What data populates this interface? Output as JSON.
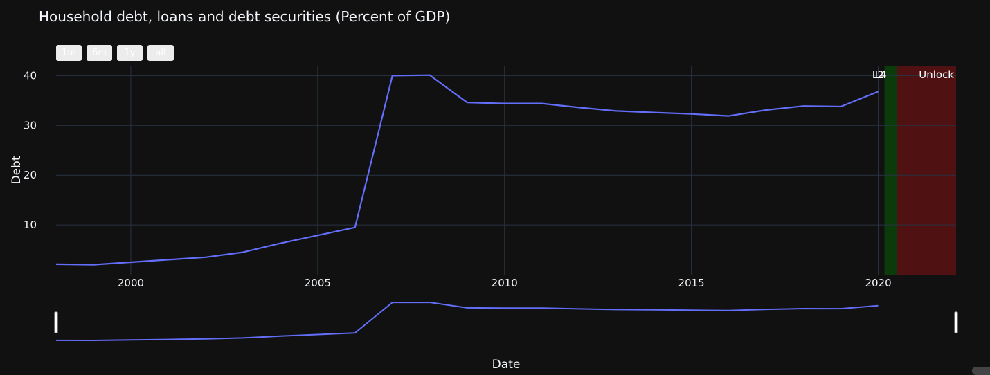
{
  "title": "Household debt, loans and debt securities (Percent of GDP)",
  "range_buttons": [
    "1m",
    "6m",
    "1y",
    "all"
  ],
  "colors": {
    "background": "#111111",
    "grid": "#283442",
    "line": "#636efa",
    "text": "#f2f5fa",
    "green_band": "#0b3a0b",
    "red_band": "#4f1111"
  },
  "annotations": {
    "vertical_marker_label": "L4",
    "vertical_marker_label_overlap": "L2",
    "unlock": "Unlock"
  },
  "chart_data": {
    "type": "line",
    "title": "Household debt, loans and debt securities (Percent of GDP)",
    "xlabel": "Date",
    "ylabel": "Debt",
    "x": [
      "1998",
      "1999",
      "2000",
      "2001",
      "2002",
      "2003",
      "2004",
      "2005",
      "2006",
      "2007",
      "2008",
      "2009",
      "2010",
      "2011",
      "2012",
      "2013",
      "2014",
      "2015",
      "2016",
      "2017",
      "2018",
      "2019",
      "2020"
    ],
    "values": [
      2.1,
      2.0,
      2.5,
      3.0,
      3.5,
      4.5,
      6.3,
      7.9,
      9.5,
      40.0,
      40.1,
      34.6,
      34.4,
      34.4,
      33.6,
      32.9,
      32.6,
      32.3,
      31.9,
      33.1,
      33.9,
      33.8,
      36.8
    ],
    "xticks": [
      "2000",
      "2005",
      "2010",
      "2015",
      "2020"
    ],
    "yticks": [
      "10",
      "20",
      "30",
      "40"
    ],
    "xlim": [
      "1998",
      "2022-02"
    ],
    "ylim": [
      0,
      42
    ],
    "grid": true,
    "shaded_regions": [
      {
        "label": "L4",
        "color": "green",
        "start": "2020-03",
        "end": "2020-07"
      },
      {
        "label": "Unlock",
        "color": "red",
        "start": "2020-07",
        "end": "2022-02"
      }
    ],
    "rangeslider": true
  }
}
